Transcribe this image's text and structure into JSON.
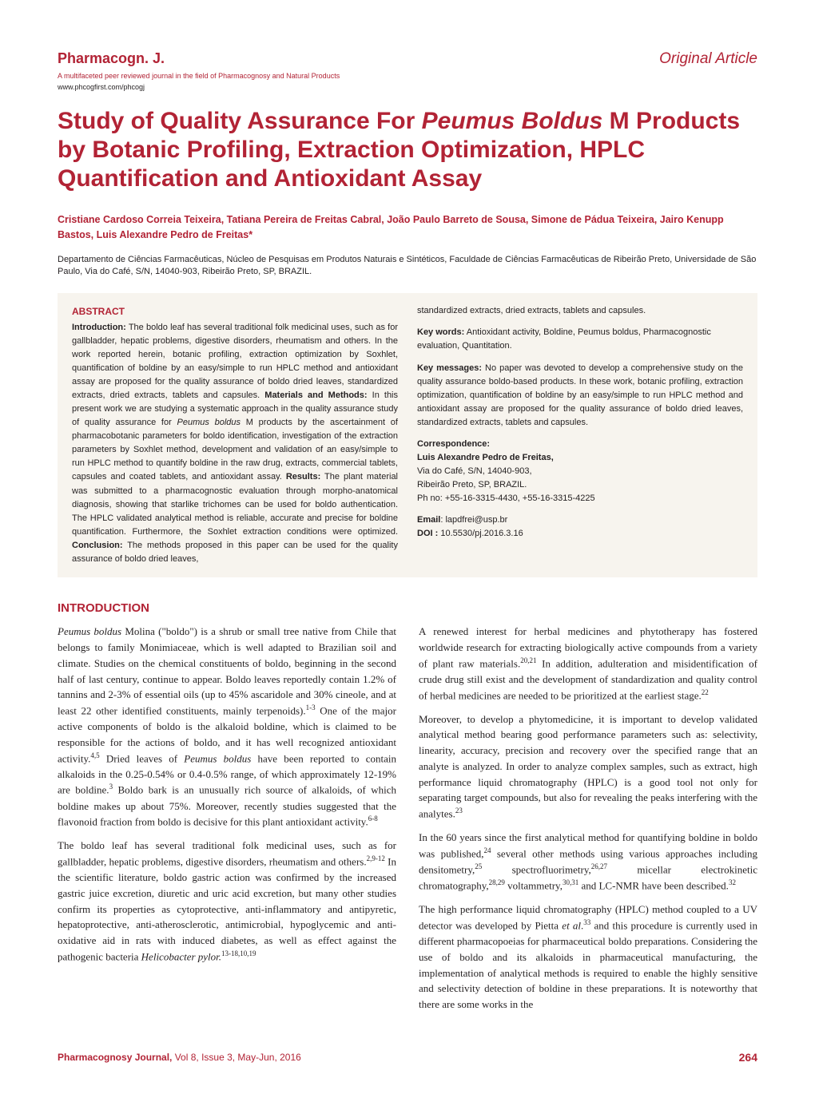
{
  "header": {
    "journal_name": "Pharmacogn. J.",
    "journal_subtitle": "A multifaceted peer reviewed journal in the field of Pharmacognosy and Natural Products",
    "journal_url": "www.phcogfirst.com/phcogj",
    "article_type": "Original Article"
  },
  "title": {
    "pre": "Study of Quality Assurance For ",
    "italic": "Peumus Boldus",
    "post": " M Products by Botanic Profiling, Extraction Optimization, HPLC Quantification and Antioxidant Assay"
  },
  "authors": "Cristiane Cardoso Correia Teixeira, Tatiana Pereira de Freitas Cabral, João Paulo Barreto de Sousa, Simone de Pádua Teixeira, Jairo Kenupp Bastos, Luis Alexandre Pedro de Freitas*",
  "affiliation": "Departamento de Ciências Farmacêuticas, Núcleo de Pesquisas em Produtos Naturais e Sintéticos, Faculdade de Ciências Farmacêuticas de Ribeirão Preto, Universidade de São Paulo, Via do Café, S/N, 14040-903, Ribeirão Preto, SP, BRAZIL.",
  "abstract": {
    "heading": "ABSTRACT",
    "left_html": "<b>Introduction:</b> The boldo leaf has several traditional folk medicinal uses, such as for gallbladder, hepatic problems, digestive disorders, rheumatism and others. In the work reported herein, botanic profiling, extraction optimization by Soxhlet, quantification of boldine by an easy/simple to run HPLC method and antioxidant assay are proposed for the quality assurance of boldo dried leaves, standardized extracts, dried extracts, tablets and capsules. <b>Materials and Methods:</b> In this present work we are studying a systematic approach in the quality assurance study of quality assurance for <span class=\"italic\">Peumus boldus</span> M products by the ascertainment of pharmacobotanic parameters for boldo identification, investigation of the extraction parameters by Soxhlet method, development and validation of an easy/simple to run HPLC method to quantify boldine in the raw drug, extracts, commercial tablets, capsules and coated tablets, and antioxidant assay. <b>Results:</b> The plant material was submitted to a pharmacognostic evaluation through morpho-anatomical diagnosis, showing that starlike trichomes can be used for boldo authentication. The HPLC validated analytical method is reliable, accurate and precise for boldine quantification. Furthermore, the Soxhlet extraction conditions were optimized. <b>Conclusion:</b> The methods proposed in this paper can be used for the quality assurance of boldo dried leaves,",
    "right_top": "standardized extracts, dried extracts, tablets and capsules.",
    "keywords_label": "Key words:",
    "keywords": " Antioxidant activity, Boldine, Peumus boldus, Pharmacognostic evaluation, Quantitation.",
    "keymessages_label": "Key messages:",
    "keymessages": " No paper was devoted to develop a comprehensive study on the quality assurance boldo-based products. In these work, botanic profiling, extraction optimization, quantification of boldine by an easy/simple to run HPLC method and antioxidant assay are proposed for the quality assurance of boldo dried leaves, standardized extracts, tablets and capsules.",
    "correspondence_label": "Correspondence:",
    "correspondence_name": "Luis Alexandre Pedro de Freitas,",
    "correspondence_addr1": "Via do Café, S/N, 14040-903,",
    "correspondence_addr2": "Ribeirão Preto, SP, BRAZIL.",
    "correspondence_phone": "Ph no: +55-16-3315-4430, +55-16-3315-4225",
    "email_label": "Email",
    "email": ": lapdfrei@usp.br",
    "doi_label": "DOI :",
    "doi": " 10.5530/pj.2016.3.16"
  },
  "intro_heading": "INTRODUCTION",
  "body": {
    "left_p1_html": "<span class=\"italic\">Peumus boldus</span> Molina (\"boldo\") is a shrub or small tree native from Chile that belongs to family Monimiaceae, which is well adapted to Brazilian soil and climate. Studies on the chemical constituents of boldo, beginning in the second half of last century, continue to appear. Boldo leaves reportedly contain 1.2% of tannins and 2-3% of essential oils (up to 45% ascaridole and 30% cineole, and at least 22 other identified constituents, mainly terpenoids).<sup>1-3</sup> One of the major active components of boldo is the alkaloid boldine, which is claimed to be responsible for the actions of boldo, and it has well recognized antioxidant activity.<sup>4,5</sup> Dried leaves of <span class=\"italic\">Peumus boldus</span> have been reported to contain alkaloids in the 0.25-0.54% or 0.4-0.5% range, of which approximately 12-19% are boldine.<sup>3</sup> Boldo bark is an unusually rich source of alkaloids, of which boldine makes up about 75%. Moreover, recently studies suggested that the flavonoid fraction from boldo is decisive for this plant antioxidant activity.<sup>6-8</sup>",
    "left_p2_html": "The boldo leaf has several traditional folk medicinal uses, such as for gallbladder, hepatic problems, digestive disorders, rheumatism and others.<sup>2,9-12</sup> In the scientific literature, boldo gastric action was confirmed by the increased gastric juice excretion, diuretic and uric acid excretion, but many other studies confirm its properties as cytoprotective, anti-inflammatory and antipyretic, hepatoprotective, anti-atherosclerotic, antimicrobial, hypoglycemic and anti-oxidative aid in rats with induced diabetes, as well as effect against the pathogenic bacteria <span class=\"italic\">Helicobacter pylor.</span><sup>13-18,10,19</sup>",
    "right_p1_html": "A renewed interest for herbal medicines and phytotherapy has fostered worldwide research for extracting biologically active compounds from a variety of plant raw materials.<sup>20,21</sup> In addition, adulteration and misidentification of crude drug still exist and the development of standardization and quality control of herbal medicines are needed to be prioritized at the earliest stage.<sup>22</sup>",
    "right_p2_html": "Moreover, to develop a phytomedicine, it is important to develop validated analytical method bearing good performance parameters such as: selectivity, linearity, accuracy, precision and recovery over the specified range that an analyte is analyzed. In order to analyze complex samples, such as extract, high performance liquid chromatography (HPLC) is a good tool not only for separating target compounds, but also for revealing the peaks interfering with the analytes.<sup>23</sup>",
    "right_p3_html": "In the 60 years since the first analytical method for quantifying boldine in boldo was published,<sup>24</sup> several other methods using various approaches including densitometry,<sup>25</sup> spectrofluorimetry,<sup>26,27</sup> micellar electrokinetic chromatography,<sup>28,29</sup> voltammetry,<sup>30,31</sup> and LC-NMR have been described.<sup>32</sup>",
    "right_p4_html": "The high performance liquid chromatography (HPLC) method coupled to a UV detector was developed by Pietta <span class=\"italic\">et al</span>.<sup>33</sup> and this procedure is currently used in different pharmacopoeias for pharmaceutical boldo preparations. Considering the use of boldo and its alkaloids in pharmaceutical manufacturing, the implementation of analytical methods is required to enable the highly sensitive and selectivity detection of boldine in these preparations. It is noteworthy that there are some works in the"
  },
  "footer": {
    "text_bold": "Pharmacognosy Journal,",
    "text_rest": " Vol 8, Issue 3, May-Jun, 2016",
    "page": "264"
  },
  "colors": {
    "accent": "#b22335",
    "abstract_bg": "#f7f4ee",
    "body_text": "#231f20"
  }
}
